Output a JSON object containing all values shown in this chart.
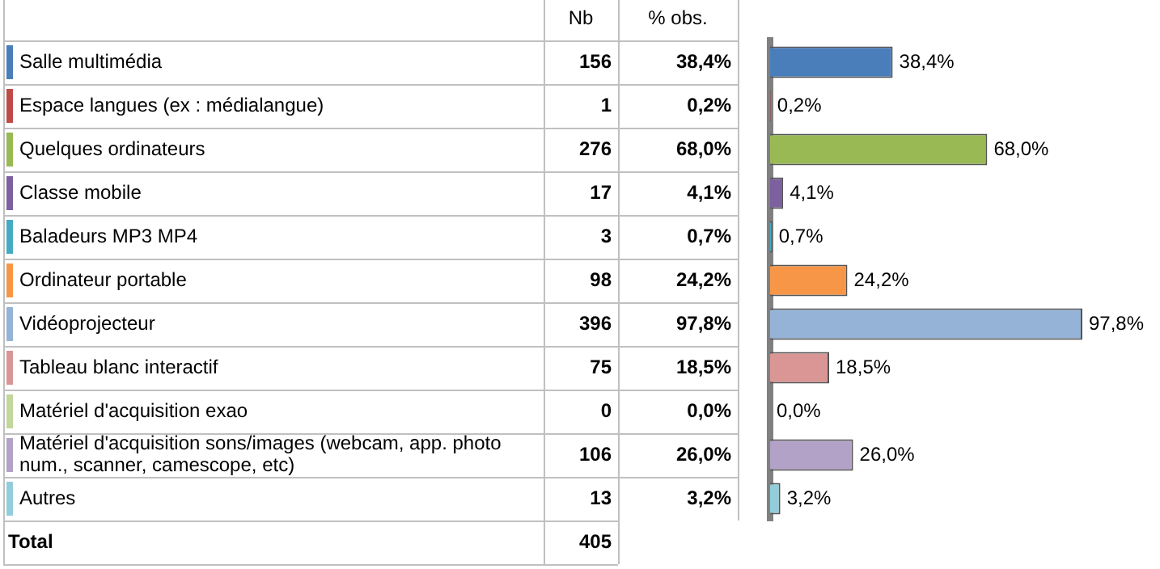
{
  "chart_data": {
    "type": "bar",
    "orientation": "horizontal",
    "grid": false,
    "legend": false,
    "data_labels": true,
    "categories": [
      "Salle multimédia",
      "Espace langues (ex : médialangue)",
      "Quelques ordinateurs",
      "Classe mobile",
      "Baladeurs MP3 MP4",
      "Ordinateur portable",
      "Vidéoprojecteur",
      "Tableau blanc interactif",
      "Matériel d'acquisition exao",
      "Matériel d'acquisition sons/images (webcam, app. photo num., scanner, camescope, etc)",
      "Autres"
    ],
    "series": [
      {
        "name": "% obs.",
        "values": [
          38.4,
          0.2,
          68.0,
          4.1,
          0.7,
          24.2,
          97.8,
          18.5,
          0.0,
          26.0,
          3.2
        ],
        "value_labels": [
          "38,4%",
          "0,2%",
          "68,0%",
          "4,1%",
          "0,7%",
          "24,2%",
          "97,8%",
          "18,5%",
          "0,0%",
          "26,0%",
          "3,2%"
        ],
        "colors": [
          "#4a7ebb",
          "#be4b48",
          "#98b954",
          "#7d60a0",
          "#46aac5",
          "#f79646",
          "#95b3d7",
          "#d99694",
          "#c3d69b",
          "#b3a2c7",
          "#92cddc"
        ]
      }
    ],
    "annotations": [
      "Nb",
      "Total",
      "405",
      "156",
      "1",
      "276",
      "17",
      "3",
      "98",
      "396",
      "75",
      "0",
      "106",
      "13"
    ]
  }
}
